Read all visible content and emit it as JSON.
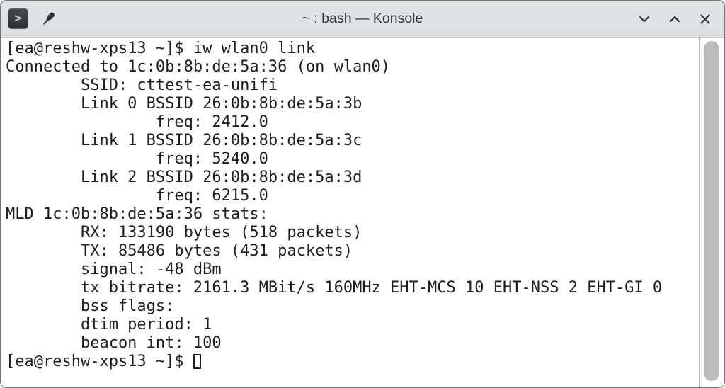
{
  "window": {
    "title": "~ : bash — Konsole",
    "app_icon_glyph": ">",
    "controls": {
      "minimize": "chevron-down-icon",
      "maximize": "chevron-up-icon",
      "close": "close-icon"
    }
  },
  "terminal": {
    "shell": "bash",
    "prompt": "[ea@reshw-xps13 ~]$ ",
    "command": "iw wlan0 link",
    "lines": [
      "[ea@reshw-xps13 ~]$ iw wlan0 link",
      "Connected to 1c:0b:8b:de:5a:36 (on wlan0)",
      "        SSID: cttest-ea-unifi",
      "        Link 0 BSSID 26:0b:8b:de:5a:3b",
      "                freq: 2412.0",
      "        Link 1 BSSID 26:0b:8b:de:5a:3c",
      "                freq: 5240.0",
      "        Link 2 BSSID 26:0b:8b:de:5a:3d",
      "                freq: 6215.0",
      "MLD 1c:0b:8b:de:5a:36 stats:",
      "        RX: 133190 bytes (518 packets)",
      "        TX: 85486 bytes (431 packets)",
      "        signal: -48 dBm",
      "        tx bitrate: 2161.3 MBit/s 160MHz EHT-MCS 10 EHT-NSS 2 EHT-GI 0",
      "        bss flags: ",
      "        dtim period: 1",
      "        beacon int: 100"
    ],
    "colors": {
      "background": "#ffffff",
      "foreground": "#1c1f22",
      "titlebar": "#dde0e2",
      "scrollbar_thumb": "#b9bbbc"
    }
  }
}
